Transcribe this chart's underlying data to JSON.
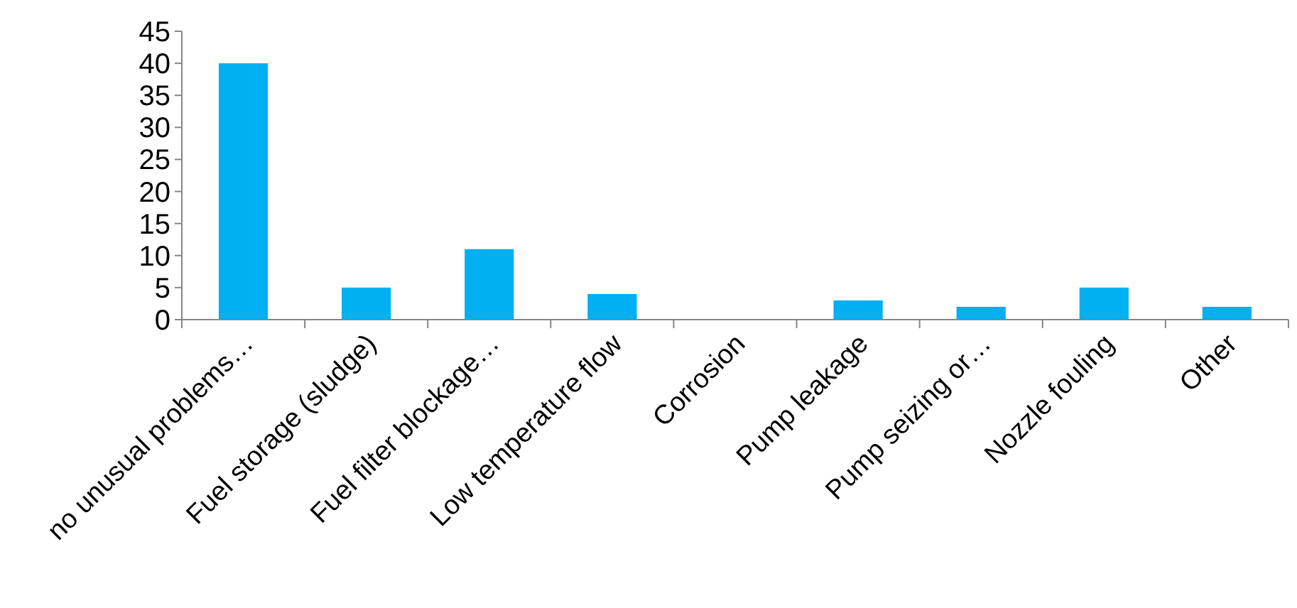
{
  "chart_data": {
    "type": "bar",
    "categories": [
      "no unusual problems…",
      "Fuel storage (sludge)",
      "Fuel filter blockage…",
      "Low temperature flow",
      "Corrosion",
      "Pump leakage",
      "Pump seizing or…",
      "Nozzle fouling",
      "Other"
    ],
    "values": [
      40,
      5,
      11,
      4,
      0,
      3,
      2,
      5,
      2
    ],
    "color": "#00b0f0",
    "ylim": [
      0,
      45
    ],
    "yticks": [
      0,
      5,
      10,
      15,
      20,
      25,
      30,
      35,
      40,
      45
    ],
    "grid": false
  }
}
